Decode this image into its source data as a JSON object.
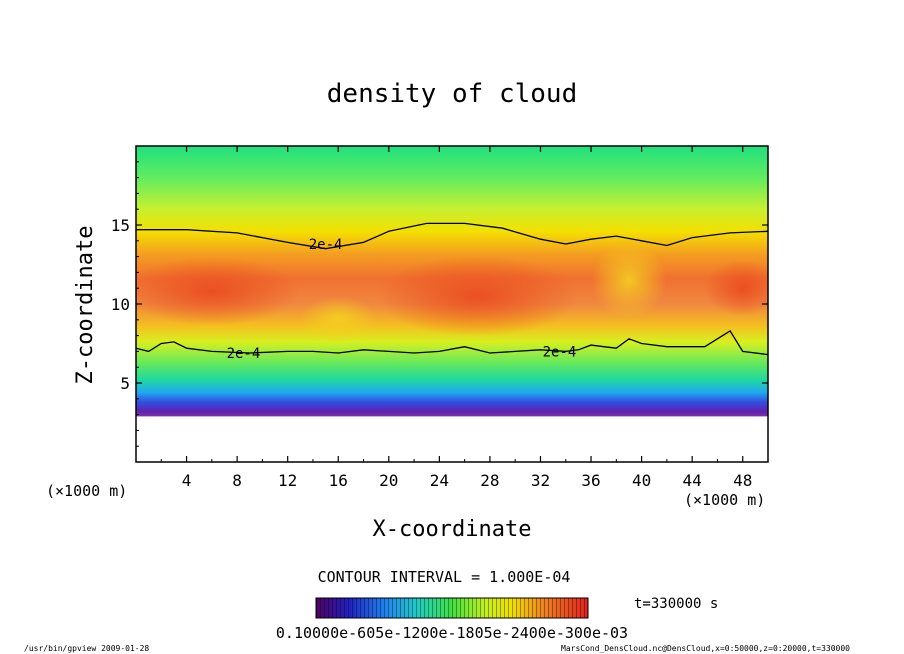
{
  "chart_data": {
    "type": "heatmap",
    "title": "density of cloud",
    "xlabel": "X-coordinate",
    "ylabel": "Z-coordinate",
    "x_unit": "(×1000 m)",
    "y_unit": "(×1000 m)",
    "xlim": [
      0,
      50
    ],
    "ylim": [
      0,
      20
    ],
    "x_ticks": [
      4,
      8,
      12,
      16,
      20,
      24,
      28,
      32,
      36,
      40,
      44,
      48
    ],
    "y_ticks": [
      5,
      10,
      15
    ],
    "contour_interval_text": "CONTOUR INTERVAL = 1.000E-04",
    "time_label": "t=330000 s",
    "colorbar_labels_text": "0.10000e-605e-1200e-1805e-2400e-300e-03",
    "contours": [
      {
        "level_label": "2e-4",
        "label_at": [
          [
            15,
            13.8
          ]
        ],
        "points": [
          [
            0,
            14.7
          ],
          [
            4,
            14.7
          ],
          [
            8,
            14.5
          ],
          [
            12,
            13.9
          ],
          [
            15,
            13.5
          ],
          [
            18,
            13.9
          ],
          [
            20,
            14.6
          ],
          [
            23,
            15.1
          ],
          [
            26,
            15.1
          ],
          [
            29,
            14.8
          ],
          [
            32,
            14.1
          ],
          [
            34,
            13.8
          ],
          [
            36,
            14.1
          ],
          [
            38,
            14.3
          ],
          [
            40,
            14.0
          ],
          [
            42,
            13.7
          ],
          [
            44,
            14.2
          ],
          [
            47,
            14.5
          ],
          [
            50,
            14.6
          ]
        ]
      },
      {
        "level_label": "2e-4",
        "label_at": [
          [
            8.5,
            6.9
          ],
          [
            33.5,
            7.0
          ]
        ],
        "points": [
          [
            0,
            7.2
          ],
          [
            1,
            7.0
          ],
          [
            2,
            7.5
          ],
          [
            3,
            7.6
          ],
          [
            4,
            7.2
          ],
          [
            6,
            7.0
          ],
          [
            9,
            6.9
          ],
          [
            12,
            7.0
          ],
          [
            14,
            7.0
          ],
          [
            16,
            6.9
          ],
          [
            18,
            7.1
          ],
          [
            20,
            7.0
          ],
          [
            22,
            6.9
          ],
          [
            24,
            7.0
          ],
          [
            26,
            7.3
          ],
          [
            28,
            6.9
          ],
          [
            30,
            7.0
          ],
          [
            32,
            7.1
          ],
          [
            34,
            7.0
          ],
          [
            35,
            7.1
          ],
          [
            36,
            7.4
          ],
          [
            37,
            7.3
          ],
          [
            38,
            7.2
          ],
          [
            39,
            7.8
          ],
          [
            40,
            7.5
          ],
          [
            42,
            7.3
          ],
          [
            45,
            7.3
          ],
          [
            47,
            8.3
          ],
          [
            48,
            7.0
          ],
          [
            50,
            6.8
          ]
        ]
      }
    ]
  },
  "footer": {
    "program": "/usr/bin/gpview  2009-01-28",
    "source": "MarsCond_DensCloud.nc@DensCloud,x=0:50000,z=0:20000,t=330000"
  }
}
